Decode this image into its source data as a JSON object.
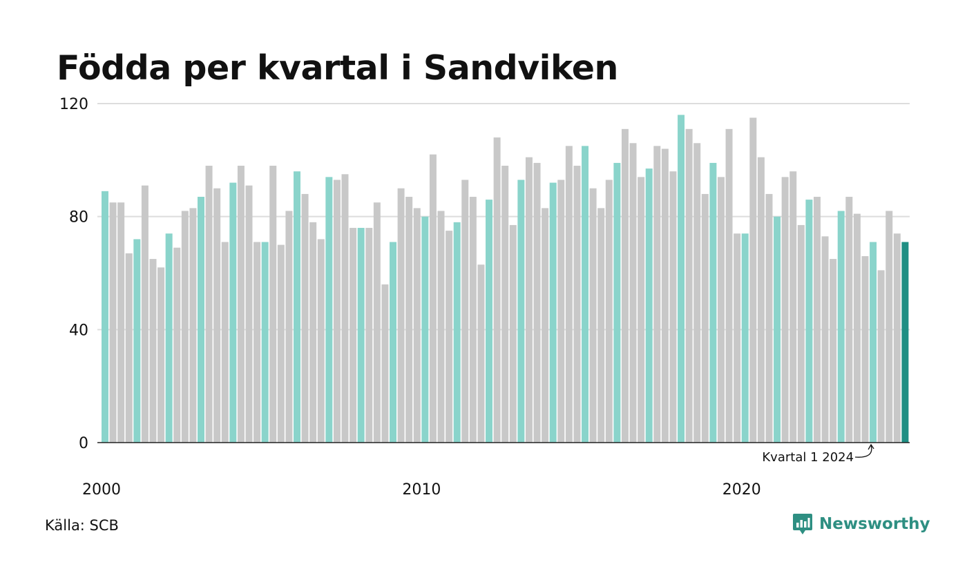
{
  "title": "Födda per kvartal i Sandviken",
  "source": "Källa: SCB",
  "brand": {
    "name": "Newsworthy",
    "logo_icon": "newsworthy-logo-icon"
  },
  "colors": {
    "q1": "#8ad4cb",
    "other": "#c8c8c8",
    "highlight": "#1f8f84",
    "grid": "#dddddd",
    "baseline": "#222222",
    "brand": "#2e8f82"
  },
  "chart_data": {
    "type": "bar",
    "title": "Födda per kvartal i Sandviken",
    "xlabel": "",
    "ylabel": "",
    "ylim": [
      0,
      120
    ],
    "y_ticks": [
      0,
      40,
      80,
      120
    ],
    "x_tick_labels": [
      {
        "year": 2000,
        "label": "2000"
      },
      {
        "year": 2010,
        "label": "2010"
      },
      {
        "year": 2020,
        "label": "2020"
      }
    ],
    "start": {
      "year": 2000,
      "quarter": 1
    },
    "grid": true,
    "annotation": {
      "text": "Kvartal 1 2024",
      "year": 2024,
      "quarter": 1
    },
    "values": [
      89,
      85,
      85,
      67,
      72,
      91,
      65,
      62,
      74,
      69,
      82,
      83,
      87,
      98,
      90,
      71,
      92,
      98,
      91,
      71,
      71,
      98,
      70,
      82,
      96,
      88,
      78,
      72,
      94,
      93,
      95,
      76,
      76,
      76,
      85,
      56,
      71,
      90,
      87,
      83,
      80,
      102,
      82,
      75,
      78,
      93,
      87,
      63,
      86,
      108,
      98,
      77,
      93,
      101,
      99,
      83,
      92,
      93,
      105,
      98,
      105,
      90,
      83,
      93,
      99,
      111,
      106,
      94,
      97,
      105,
      104,
      96,
      116,
      111,
      106,
      88,
      99,
      94,
      111,
      74,
      74,
      115,
      101,
      88,
      80,
      94,
      96,
      77,
      86,
      87,
      73,
      65,
      82,
      87,
      81,
      66,
      71,
      61,
      82,
      74,
      71
    ]
  }
}
